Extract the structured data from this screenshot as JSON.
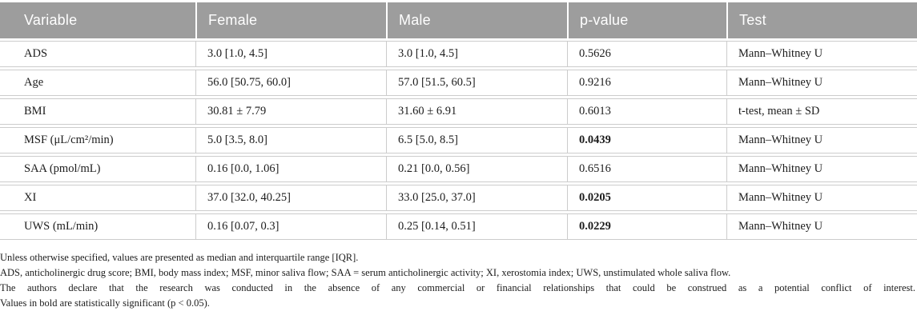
{
  "table": {
    "columns": [
      "Variable",
      "Female",
      "Male",
      "p-value",
      "Test"
    ],
    "rows": [
      {
        "variable": "ADS",
        "female": "3.0 [1.0, 4.5]",
        "male": "3.0 [1.0, 4.5]",
        "p_value": "0.5626",
        "significant": false,
        "test": "Mann–Whitney U"
      },
      {
        "variable": "Age",
        "female": "56.0 [50.75, 60.0]",
        "male": "57.0 [51.5, 60.5]",
        "p_value": "0.9216",
        "significant": false,
        "test": "Mann–Whitney U"
      },
      {
        "variable": "BMI",
        "female": "30.81 ± 7.79",
        "male": "31.60 ± 6.91",
        "p_value": "0.6013",
        "significant": false,
        "test": "t-test, mean ± SD"
      },
      {
        "variable": "MSF (μL/cm²/min)",
        "female": "5.0 [3.5, 8.0]",
        "male": "6.5 [5.0, 8.5]",
        "p_value": "0.0439",
        "significant": true,
        "test": "Mann–Whitney U"
      },
      {
        "variable": "SAA (pmol/mL)",
        "female": "0.16 [0.0, 1.06]",
        "male": "0.21 [0.0, 0.56]",
        "p_value": "0.6516",
        "significant": false,
        "test": "Mann–Whitney U"
      },
      {
        "variable": "XI",
        "female": "37.0 [32.0, 40.25]",
        "male": "33.0 [25.0, 37.0]",
        "p_value": "0.0205",
        "significant": true,
        "test": "Mann–Whitney U"
      },
      {
        "variable": "UWS (mL/min)",
        "female": "0.16 [0.07, 0.3]",
        "male": "0.25 [0.14, 0.51]",
        "p_value": "0.0229",
        "significant": true,
        "test": "Mann–Whitney U"
      }
    ]
  },
  "footnotes": [
    "Unless otherwise specified, values are presented as median and interquartile range [IQR].",
    "ADS, anticholinergic drug score; BMI, body mass index; MSF, minor saliva flow; SAA = serum anticholinergic activity; XI, xerostomia index; UWS, unstimulated whole saliva flow.",
    "The authors declare that the research was conducted in the absence of any commercial or financial relationships that could be construed as a potential conflict of interest.",
    "Values in bold are statistically significant (p < 0.05)."
  ],
  "colors": {
    "header_bg": "#9d9d9d",
    "header_text": "#ffffff",
    "row_border": "#cccccc",
    "body_text": "#1c1c1c"
  }
}
